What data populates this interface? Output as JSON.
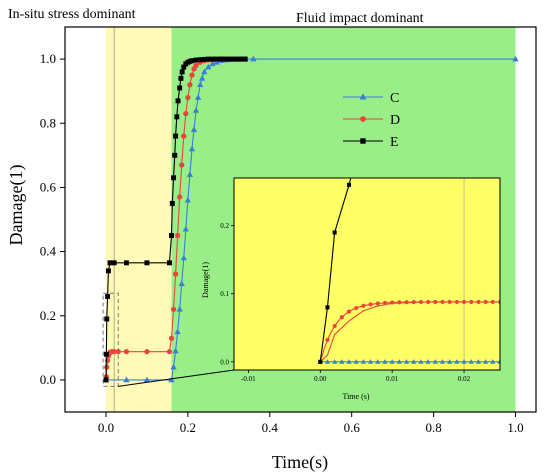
{
  "chart_data": {
    "type": "line",
    "xlabel": "Time(s)",
    "ylabel": "Damage(1)",
    "xlim": [
      -0.1,
      1.05
    ],
    "ylim": [
      -0.1,
      1.1
    ],
    "x_ticks": [
      0.0,
      0.2,
      0.4,
      0.6,
      0.8,
      1.0
    ],
    "x_tick_labels": [
      "0.0",
      "0.2",
      "0.4",
      "0.6",
      "0.8",
      "1.0"
    ],
    "y_ticks": [
      0.0,
      0.2,
      0.4,
      0.6,
      0.8,
      1.0
    ],
    "y_tick_labels": [
      "0.0",
      "0.2",
      "0.4",
      "0.6",
      "0.8",
      "1.0"
    ],
    "regions": [
      {
        "label": "In-situ stress dominant",
        "x_range": [
          0.0,
          0.16
        ],
        "color": "#fffab8"
      },
      {
        "label": "Fluid impact dominant",
        "x_range": [
          0.16,
          1.0
        ],
        "color": "#99ee88"
      }
    ],
    "legend": {
      "position": "upper-right-center"
    },
    "series": [
      {
        "name": "C",
        "color": "#3a7fd6",
        "marker": "triangle",
        "x": [
          0.0,
          0.05,
          0.1,
          0.16,
          0.165,
          0.17,
          0.175,
          0.18,
          0.185,
          0.19,
          0.195,
          0.2,
          0.205,
          0.21,
          0.215,
          0.22,
          0.225,
          0.23,
          0.235,
          0.24,
          0.25,
          0.26,
          0.27,
          0.28,
          0.29,
          0.3,
          0.31,
          0.32,
          0.33,
          0.34,
          0.36,
          1.0
        ],
        "y": [
          0.0,
          0.0,
          0.0,
          0.0,
          0.04,
          0.09,
          0.15,
          0.22,
          0.3,
          0.38,
          0.47,
          0.56,
          0.64,
          0.72,
          0.78,
          0.84,
          0.88,
          0.92,
          0.94,
          0.96,
          0.975,
          0.985,
          0.99,
          0.995,
          0.997,
          0.998,
          0.999,
          0.999,
          1.0,
          1.0,
          1.0,
          1.0
        ]
      },
      {
        "name": "D",
        "color": "#e8453c",
        "marker": "circle",
        "x": [
          0.0,
          0.001,
          0.002,
          0.004,
          0.006,
          0.008,
          0.01,
          0.015,
          0.02,
          0.03,
          0.05,
          0.1,
          0.155,
          0.16,
          0.165,
          0.17,
          0.175,
          0.18,
          0.185,
          0.19,
          0.195,
          0.2,
          0.205,
          0.21,
          0.215,
          0.22,
          0.23,
          0.24,
          0.25,
          0.26,
          0.27,
          0.28,
          0.29,
          0.3,
          0.31,
          0.32,
          0.33,
          0.34
        ],
        "y": [
          0.0,
          0.01,
          0.04,
          0.06,
          0.075,
          0.082,
          0.086,
          0.088,
          0.088,
          0.088,
          0.088,
          0.088,
          0.088,
          0.13,
          0.22,
          0.33,
          0.45,
          0.57,
          0.67,
          0.76,
          0.83,
          0.88,
          0.92,
          0.95,
          0.97,
          0.98,
          0.99,
          0.995,
          0.997,
          0.998,
          0.999,
          1.0,
          1.0,
          1.0,
          1.0,
          1.0,
          1.0,
          1.0
        ]
      },
      {
        "name": "E",
        "color": "#000000",
        "marker": "square",
        "x": [
          0.0,
          0.001,
          0.002,
          0.004,
          0.006,
          0.01,
          0.02,
          0.05,
          0.1,
          0.155,
          0.16,
          0.162,
          0.165,
          0.168,
          0.17,
          0.173,
          0.176,
          0.18,
          0.183,
          0.186,
          0.19,
          0.195,
          0.2,
          0.205,
          0.21,
          0.22,
          0.23,
          0.24,
          0.25,
          0.26,
          0.27,
          0.28,
          0.29,
          0.3,
          0.31,
          0.32,
          0.33,
          0.34
        ],
        "y": [
          0.0,
          0.08,
          0.19,
          0.26,
          0.34,
          0.365,
          0.365,
          0.365,
          0.365,
          0.365,
          0.45,
          0.55,
          0.63,
          0.7,
          0.76,
          0.82,
          0.87,
          0.91,
          0.94,
          0.96,
          0.975,
          0.985,
          0.99,
          0.993,
          0.995,
          0.997,
          0.998,
          0.999,
          1.0,
          1.0,
          1.0,
          1.0,
          1.0,
          1.0,
          1.0,
          1.0,
          1.0,
          1.0
        ]
      }
    ],
    "inset": {
      "xlabel": "Time (s)",
      "ylabel": "Damage(1)",
      "xlim": [
        -0.012,
        0.025
      ],
      "ylim": [
        -0.012,
        0.27
      ],
      "x_ticks": [
        -0.01,
        0.0,
        0.01,
        0.02
      ],
      "x_tick_labels": [
        "-0.01",
        "0.00",
        "0.01",
        "0.02"
      ],
      "y_ticks": [
        0.0,
        0.1,
        0.2
      ],
      "y_tick_labels": [
        "0.0",
        "0.1",
        "0.2"
      ],
      "background": "#ffff66",
      "ref_line_x": 0.02
    }
  }
}
